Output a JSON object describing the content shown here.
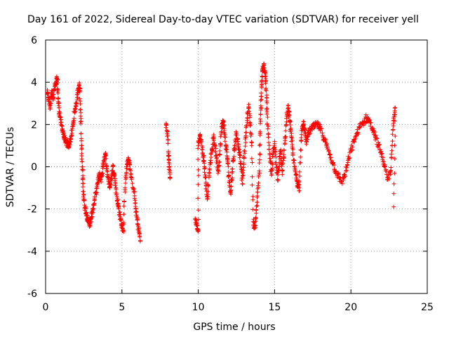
{
  "chart_data": {
    "type": "scatter",
    "title": "Day 161 of 2022, Sidereal Day-to-day VTEC variation (SDTVAR) for receiver yell",
    "xlabel": "GPS time / hours",
    "ylabel": "SDTVAR / TECUs",
    "xlim": [
      0,
      25
    ],
    "ylim": [
      -6,
      6
    ],
    "xticks": [
      0,
      5,
      10,
      15,
      20,
      25
    ],
    "yticks": [
      -6,
      -4,
      -2,
      0,
      2,
      4,
      6
    ],
    "xtick_labels": [
      "0",
      "5",
      "10",
      "15",
      "20",
      "25"
    ],
    "ytick_labels": [
      "-6",
      "-4",
      "-2",
      "0",
      "2",
      "4",
      "6"
    ],
    "grid": true,
    "legend": "none",
    "marker": "+",
    "marker_color": "#ff0000",
    "series": [
      {
        "name": "SDTVAR",
        "trace_points": [
          [
            0.1,
            3.5
          ],
          [
            0.2,
            3.2
          ],
          [
            0.3,
            2.8
          ],
          [
            0.4,
            3.6
          ],
          [
            0.5,
            3.3
          ],
          [
            0.6,
            3.8
          ],
          [
            0.7,
            3.9
          ],
          [
            0.75,
            4.2
          ],
          [
            0.8,
            3.5
          ],
          [
            0.85,
            3.0
          ],
          [
            0.9,
            2.6
          ],
          [
            1.0,
            2.1
          ],
          [
            1.1,
            1.8
          ],
          [
            1.2,
            1.4
          ],
          [
            1.3,
            1.2
          ],
          [
            1.4,
            1.1
          ],
          [
            1.5,
            1.0
          ],
          [
            1.6,
            1.2
          ],
          [
            1.7,
            1.5
          ],
          [
            1.8,
            2.0
          ],
          [
            1.9,
            2.6
          ],
          [
            2.0,
            3.0
          ],
          [
            2.1,
            3.5
          ],
          [
            2.2,
            3.9
          ],
          [
            2.25,
            3.6
          ],
          [
            2.3,
            2.4
          ],
          [
            2.35,
            1.0
          ],
          [
            2.4,
            0.0
          ],
          [
            2.45,
            -0.8
          ],
          [
            2.5,
            -1.6
          ],
          [
            2.6,
            -2.0
          ],
          [
            2.7,
            -2.3
          ],
          [
            2.8,
            -2.6
          ],
          [
            2.9,
            -2.7
          ],
          [
            3.0,
            -2.4
          ],
          [
            3.1,
            -2.0
          ],
          [
            3.2,
            -1.6
          ],
          [
            3.3,
            -1.2
          ],
          [
            3.4,
            -0.8
          ],
          [
            3.5,
            -0.4
          ],
          [
            3.6,
            -0.6
          ],
          [
            3.7,
            -0.3
          ],
          [
            3.8,
            0.3
          ],
          [
            3.9,
            0.6
          ],
          [
            4.0,
            0.0
          ],
          [
            4.1,
            -0.5
          ],
          [
            4.2,
            -1.0
          ],
          [
            4.3,
            -0.6
          ],
          [
            4.4,
            0.0
          ],
          [
            4.5,
            -0.3
          ],
          [
            4.6,
            -1.0
          ],
          [
            4.7,
            -1.6
          ],
          [
            4.8,
            -2.0
          ],
          [
            4.9,
            -2.5
          ],
          [
            5.0,
            -2.8
          ],
          [
            5.1,
            -3.0
          ],
          [
            5.2,
            -1.0
          ],
          [
            5.3,
            0.0
          ],
          [
            5.4,
            0.3
          ],
          [
            5.5,
            0.2
          ],
          [
            5.6,
            -0.5
          ],
          [
            5.8,
            -1.2
          ],
          [
            5.9,
            -2.0
          ],
          [
            6.0,
            -2.5
          ],
          [
            6.1,
            -3.0
          ],
          [
            6.2,
            -3.5
          ],
          [
            7.9,
            2.0
          ],
          [
            8.0,
            1.5
          ],
          [
            8.05,
            0.5
          ],
          [
            8.1,
            0.0
          ],
          [
            8.15,
            -0.5
          ],
          [
            9.8,
            -2.5
          ],
          [
            9.9,
            -2.8
          ],
          [
            10.0,
            -3.0
          ],
          [
            10.0,
            1.0
          ],
          [
            10.1,
            1.5
          ],
          [
            10.2,
            1.2
          ],
          [
            10.3,
            0.6
          ],
          [
            10.4,
            0.0
          ],
          [
            10.5,
            -0.8
          ],
          [
            10.6,
            -1.5
          ],
          [
            10.7,
            -0.5
          ],
          [
            10.8,
            0.3
          ],
          [
            10.9,
            0.8
          ],
          [
            11.0,
            1.4
          ],
          [
            11.1,
            1.0
          ],
          [
            11.2,
            0.4
          ],
          [
            11.3,
            -0.2
          ],
          [
            11.4,
            0.6
          ],
          [
            11.5,
            1.6
          ],
          [
            11.6,
            2.2
          ],
          [
            11.7,
            1.8
          ],
          [
            11.8,
            1.0
          ],
          [
            11.9,
            0.4
          ],
          [
            12.0,
            -0.4
          ],
          [
            12.1,
            -1.2
          ],
          [
            12.2,
            -0.6
          ],
          [
            12.3,
            0.4
          ],
          [
            12.4,
            1.0
          ],
          [
            12.5,
            1.6
          ],
          [
            12.6,
            1.2
          ],
          [
            12.7,
            0.6
          ],
          [
            12.8,
            0.0
          ],
          [
            12.9,
            -0.8
          ],
          [
            13.0,
            0.4
          ],
          [
            13.1,
            1.4
          ],
          [
            13.2,
            2.2
          ],
          [
            13.3,
            2.8
          ],
          [
            13.4,
            2.0
          ],
          [
            13.5,
            1.0
          ],
          [
            13.6,
            -2.6
          ],
          [
            13.7,
            -2.9
          ],
          [
            13.8,
            -2.2
          ],
          [
            13.9,
            -1.2
          ],
          [
            14.0,
            -0.2
          ],
          [
            14.05,
            1.6
          ],
          [
            14.1,
            2.8
          ],
          [
            14.15,
            3.8
          ],
          [
            14.2,
            4.5
          ],
          [
            14.3,
            4.8
          ],
          [
            14.4,
            4.4
          ],
          [
            14.45,
            3.6
          ],
          [
            14.5,
            2.6
          ],
          [
            14.6,
            1.4
          ],
          [
            14.7,
            0.4
          ],
          [
            14.8,
            -0.4
          ],
          [
            14.9,
            0.6
          ],
          [
            15.0,
            1.2
          ],
          [
            15.1,
            0.2
          ],
          [
            15.2,
            -0.6
          ],
          [
            15.3,
            0.2
          ],
          [
            15.4,
            0.8
          ],
          [
            15.5,
            -0.2
          ],
          [
            15.6,
            0.4
          ],
          [
            15.7,
            1.4
          ],
          [
            15.8,
            2.4
          ],
          [
            15.9,
            2.8
          ],
          [
            16.0,
            2.2
          ],
          [
            16.1,
            1.4
          ],
          [
            16.2,
            0.6
          ],
          [
            16.3,
            0.0
          ],
          [
            16.4,
            -0.4
          ],
          [
            16.5,
            -0.8
          ],
          [
            16.6,
            -1.0
          ],
          [
            16.7,
            0.8
          ],
          [
            16.8,
            1.8
          ],
          [
            16.9,
            2.0
          ],
          [
            17.0,
            1.6
          ],
          [
            17.1,
            1.2
          ],
          [
            17.2,
            1.6
          ],
          [
            17.4,
            1.8
          ],
          [
            17.6,
            1.9
          ],
          [
            17.8,
            2.0
          ],
          [
            18.0,
            1.8
          ],
          [
            18.2,
            1.4
          ],
          [
            18.4,
            1.0
          ],
          [
            18.6,
            0.6
          ],
          [
            18.8,
            0.2
          ],
          [
            19.0,
            -0.2
          ],
          [
            19.2,
            -0.5
          ],
          [
            19.4,
            -0.7
          ],
          [
            19.6,
            -0.4
          ],
          [
            19.8,
            0.2
          ],
          [
            20.0,
            0.8
          ],
          [
            20.2,
            1.2
          ],
          [
            20.4,
            1.6
          ],
          [
            20.6,
            1.9
          ],
          [
            20.8,
            2.1
          ],
          [
            21.0,
            2.3
          ],
          [
            21.2,
            2.2
          ],
          [
            21.4,
            1.8
          ],
          [
            21.6,
            1.4
          ],
          [
            21.8,
            1.0
          ],
          [
            22.0,
            0.6
          ],
          [
            22.2,
            0.0
          ],
          [
            22.4,
            -0.6
          ],
          [
            22.6,
            -0.2
          ],
          [
            22.7,
            1.0
          ],
          [
            22.8,
            2.2
          ],
          [
            22.9,
            2.8
          ],
          [
            22.8,
            -1.9
          ]
        ],
        "jitter": 0.35
      }
    ]
  }
}
